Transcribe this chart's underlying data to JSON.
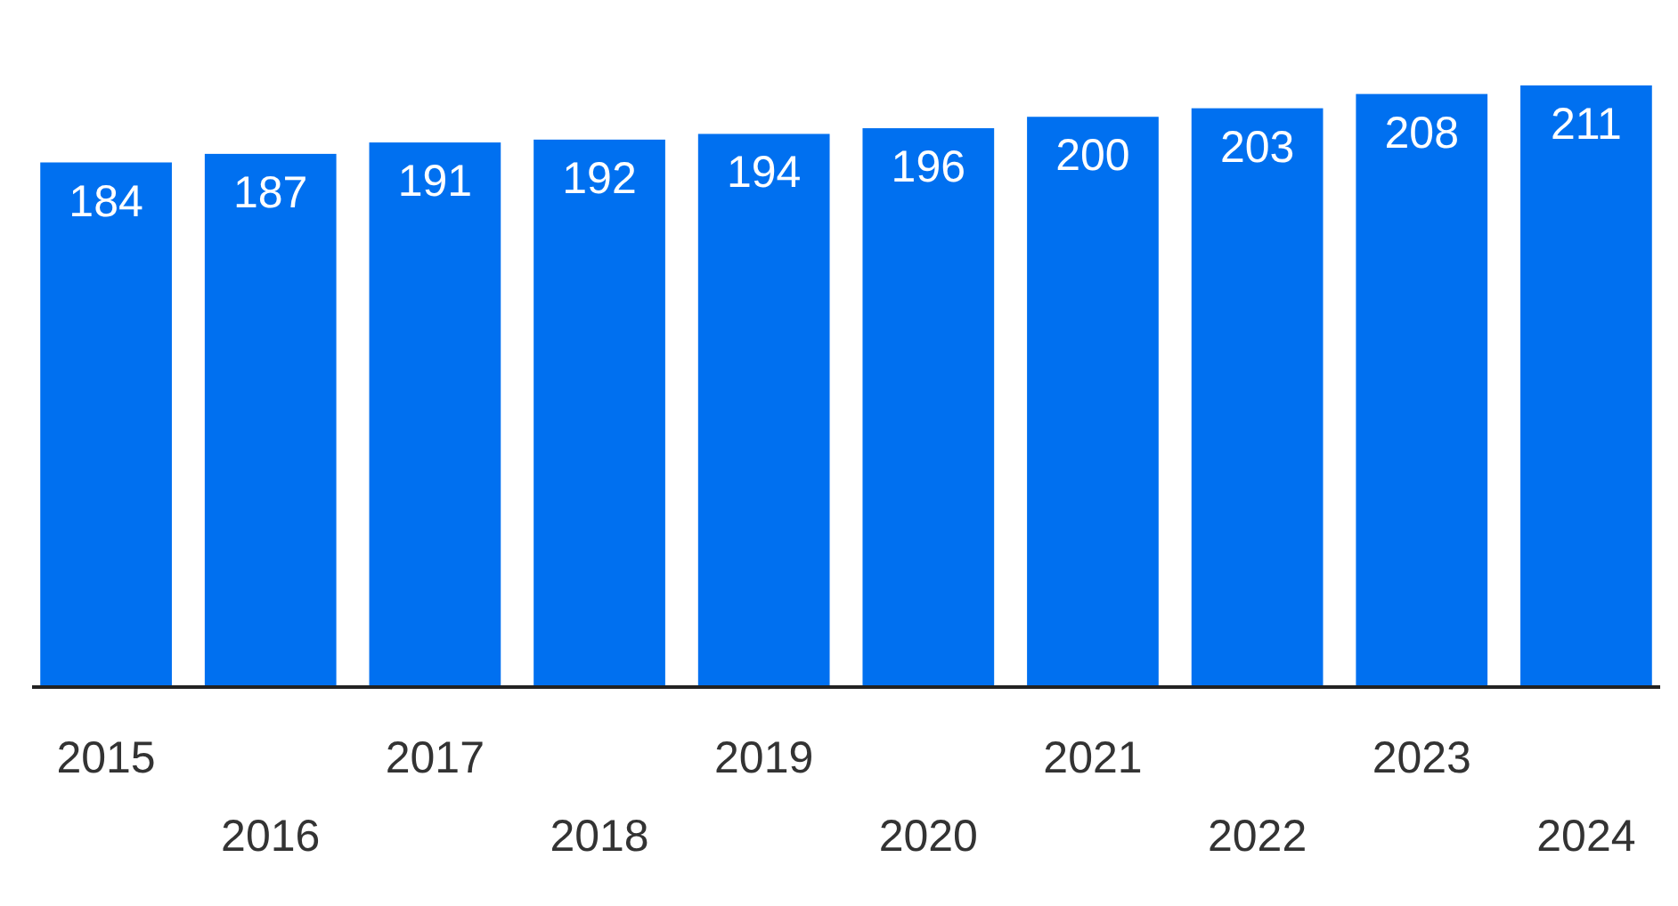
{
  "chart_data": {
    "type": "bar",
    "categories": [
      "2015",
      "2016",
      "2017",
      "2018",
      "2019",
      "2020",
      "2021",
      "2022",
      "2023",
      "2024"
    ],
    "values": [
      184,
      187,
      191,
      192,
      194,
      196,
      200,
      203,
      208,
      211
    ],
    "color": "#0070f0",
    "data_labels": true
  }
}
